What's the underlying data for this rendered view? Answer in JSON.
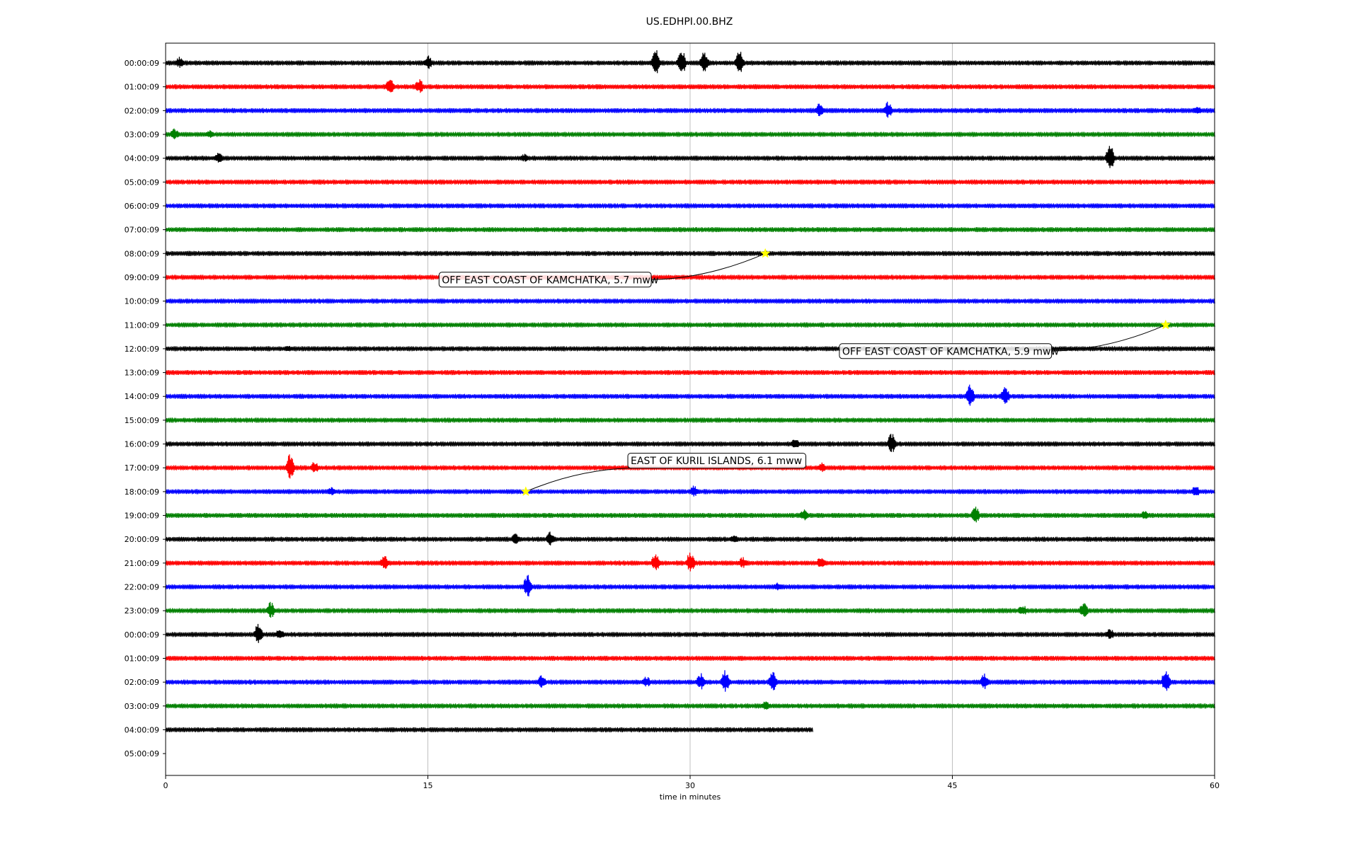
{
  "chart_data": {
    "type": "line",
    "title": "US.EDHPI.00.BHZ",
    "xlabel": "time in minutes",
    "ylabel": "",
    "xlim": [
      0,
      60
    ],
    "x_ticks": [
      "0",
      "15",
      "30",
      "45",
      "60"
    ],
    "grid": "vertical lines at 15-minute ticks",
    "row_labels": [
      "00:00:09",
      "01:00:09",
      "02:00:09",
      "03:00:09",
      "04:00:09",
      "05:00:09",
      "06:00:09",
      "07:00:09",
      "08:00:09",
      "09:00:09",
      "10:00:09",
      "11:00:09",
      "12:00:09",
      "13:00:09",
      "14:00:09",
      "15:00:09",
      "16:00:09",
      "17:00:09",
      "18:00:09",
      "19:00:09",
      "20:00:09",
      "21:00:09",
      "22:00:09",
      "23:00:09",
      "00:00:09",
      "01:00:09",
      "02:00:09",
      "03:00:09",
      "04:00:09",
      "05:00:09"
    ],
    "trace_color_cycle": [
      "#000000",
      "#ff0000",
      "#0000ff",
      "#008000"
    ],
    "traces_end_minute": [
      60,
      60,
      60,
      60,
      60,
      60,
      60,
      60,
      60,
      60,
      60,
      60,
      60,
      60,
      60,
      60,
      60,
      60,
      60,
      60,
      60,
      60,
      60,
      60,
      60,
      60,
      60,
      60,
      37,
      0
    ],
    "bursts": [
      {
        "row": 0,
        "minute": 28.0,
        "amp": 1.0
      },
      {
        "row": 0,
        "minute": 29.5,
        "amp": 0.9
      },
      {
        "row": 0,
        "minute": 30.8,
        "amp": 0.8
      },
      {
        "row": 0,
        "minute": 32.8,
        "amp": 0.8
      },
      {
        "row": 0,
        "minute": 15.0,
        "amp": 0.5
      },
      {
        "row": 0,
        "minute": 0.8,
        "amp": 0.4
      },
      {
        "row": 1,
        "minute": 12.8,
        "amp": 0.6
      },
      {
        "row": 1,
        "minute": 14.5,
        "amp": 0.5
      },
      {
        "row": 2,
        "minute": 37.4,
        "amp": 0.5
      },
      {
        "row": 2,
        "minute": 41.3,
        "amp": 0.6
      },
      {
        "row": 2,
        "minute": 59.0,
        "amp": 0.3
      },
      {
        "row": 3,
        "minute": 0.5,
        "amp": 0.4
      },
      {
        "row": 3,
        "minute": 2.5,
        "amp": 0.3
      },
      {
        "row": 4,
        "minute": 3.0,
        "amp": 0.4
      },
      {
        "row": 4,
        "minute": 20.5,
        "amp": 0.3
      },
      {
        "row": 4,
        "minute": 54.0,
        "amp": 0.9
      },
      {
        "row": 12,
        "minute": 7.0,
        "amp": 0.2
      },
      {
        "row": 14,
        "minute": 46.0,
        "amp": 0.8
      },
      {
        "row": 14,
        "minute": 48.0,
        "amp": 0.6
      },
      {
        "row": 16,
        "minute": 36.0,
        "amp": 0.4
      },
      {
        "row": 16,
        "minute": 41.5,
        "amp": 0.7
      },
      {
        "row": 17,
        "minute": 7.1,
        "amp": 0.9
      },
      {
        "row": 17,
        "minute": 8.5,
        "amp": 0.4
      },
      {
        "row": 17,
        "minute": 37.5,
        "amp": 0.4
      },
      {
        "row": 18,
        "minute": 9.5,
        "amp": 0.3
      },
      {
        "row": 18,
        "minute": 30.2,
        "amp": 0.4
      },
      {
        "row": 18,
        "minute": 58.9,
        "amp": 0.4
      },
      {
        "row": 19,
        "minute": 36.5,
        "amp": 0.4
      },
      {
        "row": 19,
        "minute": 46.3,
        "amp": 0.6
      },
      {
        "row": 19,
        "minute": 56.0,
        "amp": 0.3
      },
      {
        "row": 20,
        "minute": 20.0,
        "amp": 0.4
      },
      {
        "row": 20,
        "minute": 22.0,
        "amp": 0.5
      },
      {
        "row": 20,
        "minute": 32.5,
        "amp": 0.3
      },
      {
        "row": 21,
        "minute": 12.5,
        "amp": 0.5
      },
      {
        "row": 21,
        "minute": 28.0,
        "amp": 0.6
      },
      {
        "row": 21,
        "minute": 30.0,
        "amp": 0.7
      },
      {
        "row": 21,
        "minute": 33.0,
        "amp": 0.4
      },
      {
        "row": 21,
        "minute": 37.5,
        "amp": 0.5
      },
      {
        "row": 22,
        "minute": 20.7,
        "amp": 0.8
      },
      {
        "row": 22,
        "minute": 35.0,
        "amp": 0.3
      },
      {
        "row": 23,
        "minute": 6.0,
        "amp": 0.6
      },
      {
        "row": 23,
        "minute": 49.0,
        "amp": 0.4
      },
      {
        "row": 23,
        "minute": 52.5,
        "amp": 0.5
      },
      {
        "row": 24,
        "minute": 5.3,
        "amp": 0.7
      },
      {
        "row": 24,
        "minute": 6.5,
        "amp": 0.4
      },
      {
        "row": 24,
        "minute": 54.0,
        "amp": 0.4
      },
      {
        "row": 26,
        "minute": 21.5,
        "amp": 0.5
      },
      {
        "row": 26,
        "minute": 27.5,
        "amp": 0.4
      },
      {
        "row": 26,
        "minute": 30.6,
        "amp": 0.6
      },
      {
        "row": 26,
        "minute": 32.0,
        "amp": 0.8
      },
      {
        "row": 26,
        "minute": 34.7,
        "amp": 0.7
      },
      {
        "row": 26,
        "minute": 46.8,
        "amp": 0.6
      },
      {
        "row": 26,
        "minute": 57.2,
        "amp": 0.8
      },
      {
        "row": 27,
        "minute": 34.3,
        "amp": 0.3
      }
    ],
    "events": [
      {
        "label": "OFF EAST COAST OF KAMCHATKA, 5.7 mww",
        "row": 8,
        "minute": 34.3,
        "label_row": 9.1,
        "label_minute": 15.8
      },
      {
        "label": "OFF EAST COAST OF KAMCHATKA, 5.9 mww",
        "row": 11,
        "minute": 57.2,
        "label_row": 12.1,
        "label_minute": 38.7
      },
      {
        "label": "EAST OF KURIL ISLANDS, 6.1 mww",
        "row": 18,
        "minute": 20.6,
        "label_row": 16.7,
        "label_minute": 26.6
      }
    ],
    "event_marker_color": "#ffff00"
  }
}
